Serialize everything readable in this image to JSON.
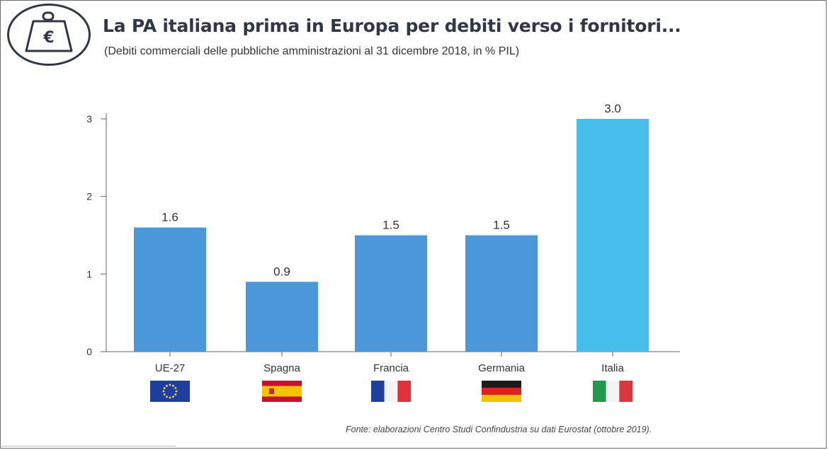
{
  "header": {
    "title": "La PA italiana prima in Europa per debiti verso i fornitori...",
    "subtitle": "(Debiti commerciali delle pubbliche amministrazioni al 31 dicembre 2018, in % PIL)",
    "badge_icon": "weight-euro-icon",
    "badge_symbol": "€"
  },
  "chart_data": {
    "type": "bar",
    "title": "La PA italiana prima in Europa per debiti verso i fornitori...",
    "subtitle": "(Debiti commerciali delle pubbliche amministrazioni al 31 dicembre 2018, in % PIL)",
    "categories": [
      "UE-27",
      "Spagna",
      "Francia",
      "Germania",
      "Italia"
    ],
    "values": [
      1.6,
      0.9,
      1.5,
      1.5,
      3.0
    ],
    "value_labels": [
      "1.6",
      "0.9",
      "1.5",
      "1.5",
      "3.0"
    ],
    "flags": [
      "eu-flag-icon",
      "spain-flag-icon",
      "france-flag-icon",
      "germany-flag-icon",
      "italy-flag-icon"
    ],
    "xlabel": "",
    "ylabel": "",
    "ylim": [
      0,
      3
    ],
    "yticks": [
      0,
      1,
      2,
      3
    ],
    "grid": false,
    "legend": "none",
    "colors": {
      "bar": "#4a98d9",
      "highlight": "#46bdea",
      "axis": "#666666"
    },
    "highlight_category": "Italia"
  },
  "footer": {
    "source": "Fonte: elaborazioni Centro Studi Confindustria su dati Eurostat (ottobre 2019)."
  }
}
